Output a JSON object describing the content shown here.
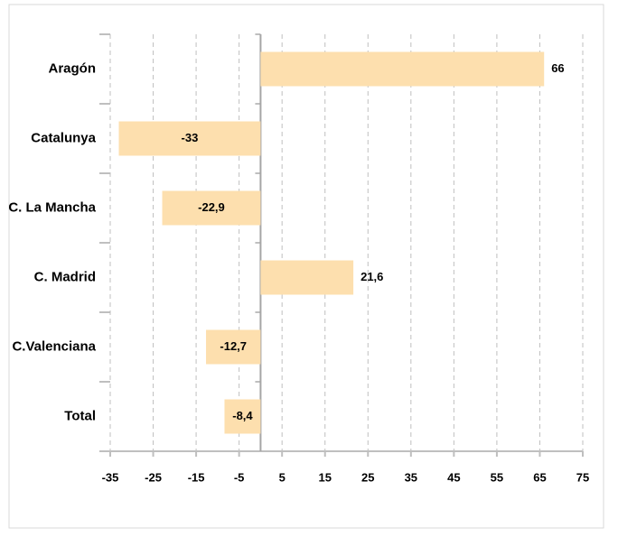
{
  "chart_data": {
    "type": "barh",
    "categories": [
      "Aragón",
      "Catalunya",
      "C. La Mancha",
      "C. Madrid",
      "C.Valenciana",
      "Total"
    ],
    "values": [
      66,
      -33,
      -22.9,
      21.6,
      -12.7,
      -8.4
    ],
    "value_labels": [
      "66",
      "-33",
      "-22,9",
      "21,6",
      "-12,7",
      "-8,4"
    ],
    "color": "#fddfae",
    "xlim": [
      -35,
      75
    ],
    "xticks": [
      -35,
      -25,
      -15,
      -5,
      5,
      15,
      25,
      35,
      45,
      55,
      65,
      75
    ],
    "grid": true
  }
}
